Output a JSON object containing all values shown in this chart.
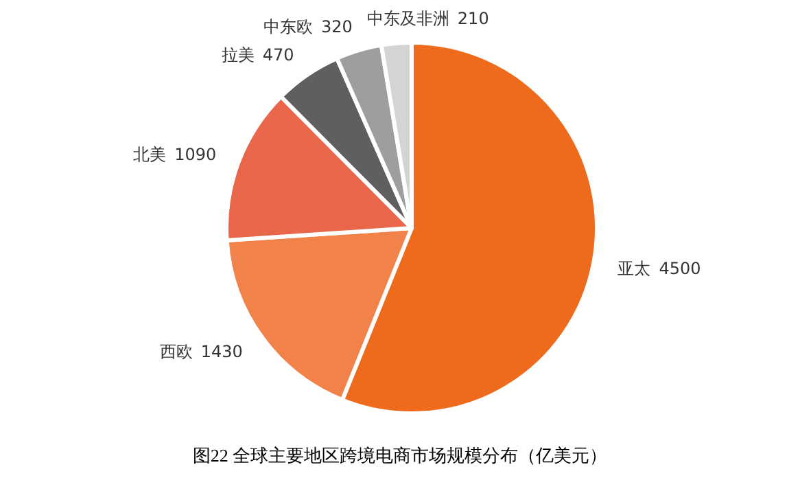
{
  "chart_data": {
    "type": "pie",
    "title": "图22  全球主要地区跨境电商市场规模分布（亿美元）",
    "categories": [
      "亚太",
      "西欧",
      "北美",
      "拉美",
      "中东欧",
      "中东及非洲"
    ],
    "values": [
      4500,
      1430,
      1090,
      470,
      320,
      210
    ],
    "colors": [
      "#ee6a1c",
      "#f0824a",
      "#e8664a",
      "#5f5f5f",
      "#9e9e9e",
      "#d4d4d4"
    ],
    "data_labels": true
  }
}
